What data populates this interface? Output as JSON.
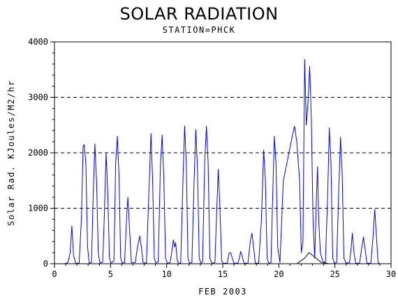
{
  "chart_data": {
    "type": "line",
    "title": "SOLAR RADIATION",
    "subtitle": "STATION=PHCK",
    "xlabel": "FEB 2003",
    "ylabel": "Solar Rad. KJoules/M2/hr",
    "xlim": [
      0,
      30
    ],
    "ylim": [
      0,
      4000
    ],
    "x_ticks": [
      0,
      5,
      10,
      15,
      20,
      25,
      30
    ],
    "y_ticks": [
      0,
      1000,
      2000,
      3000,
      4000
    ],
    "y_tick_labels": [
      "0",
      "1000",
      "2000",
      "3000",
      "4000"
    ],
    "grid": "dashed horizontal",
    "series": [
      {
        "color": "#0000ff",
        "points": [
          [
            0.9,
            0
          ],
          [
            1.2,
            20
          ],
          [
            1.4,
            200
          ],
          [
            1.55,
            680
          ],
          [
            1.7,
            150
          ],
          [
            1.9,
            10
          ],
          [
            2.2,
            10
          ],
          [
            2.4,
            800
          ],
          [
            2.55,
            2100
          ],
          [
            2.65,
            2150
          ],
          [
            2.8,
            1800
          ],
          [
            2.95,
            300
          ],
          [
            3.1,
            10
          ],
          [
            3.3,
            20
          ],
          [
            3.45,
            1200
          ],
          [
            3.6,
            2160
          ],
          [
            3.75,
            1500
          ],
          [
            3.9,
            200
          ],
          [
            4.05,
            10
          ],
          [
            4.3,
            30
          ],
          [
            4.45,
            900
          ],
          [
            4.6,
            2000
          ],
          [
            4.75,
            1300
          ],
          [
            4.9,
            100
          ],
          [
            5.05,
            10
          ],
          [
            5.3,
            50
          ],
          [
            5.45,
            1800
          ],
          [
            5.6,
            2300
          ],
          [
            5.75,
            1600
          ],
          [
            5.9,
            100
          ],
          [
            6.05,
            10
          ],
          [
            6.25,
            20
          ],
          [
            6.45,
            900
          ],
          [
            6.55,
            1200
          ],
          [
            6.7,
            600
          ],
          [
            6.85,
            20
          ],
          [
            7.2,
            20
          ],
          [
            7.4,
            300
          ],
          [
            7.6,
            500
          ],
          [
            7.75,
            300
          ],
          [
            7.9,
            20
          ],
          [
            8.2,
            10
          ],
          [
            8.4,
            1200
          ],
          [
            8.6,
            2350
          ],
          [
            8.75,
            1500
          ],
          [
            8.9,
            100
          ],
          [
            9.05,
            10
          ],
          [
            9.25,
            30
          ],
          [
            9.45,
            1800
          ],
          [
            9.6,
            2320
          ],
          [
            9.75,
            1500
          ],
          [
            9.9,
            100
          ],
          [
            10.05,
            10
          ],
          [
            10.3,
            20
          ],
          [
            10.45,
            200
          ],
          [
            10.6,
            430
          ],
          [
            10.7,
            300
          ],
          [
            10.8,
            380
          ],
          [
            10.95,
            50
          ],
          [
            11.1,
            10
          ],
          [
            11.25,
            10
          ],
          [
            11.45,
            1500
          ],
          [
            11.6,
            2480
          ],
          [
            11.75,
            1800
          ],
          [
            11.9,
            100
          ],
          [
            12.05,
            10
          ],
          [
            12.25,
            20
          ],
          [
            12.45,
            1500
          ],
          [
            12.6,
            2420
          ],
          [
            12.75,
            1700
          ],
          [
            12.9,
            100
          ],
          [
            13.05,
            10
          ],
          [
            13.2,
            30
          ],
          [
            13.4,
            1900
          ],
          [
            13.55,
            2480
          ],
          [
            13.7,
            1800
          ],
          [
            13.85,
            100
          ],
          [
            14.05,
            10
          ],
          [
            14.3,
            20
          ],
          [
            14.45,
            900
          ],
          [
            14.6,
            1700
          ],
          [
            14.75,
            1000
          ],
          [
            14.9,
            50
          ],
          [
            15.05,
            10
          ],
          [
            15.4,
            10
          ],
          [
            15.55,
            180
          ],
          [
            15.7,
            200
          ],
          [
            15.85,
            100
          ],
          [
            16.0,
            10
          ],
          [
            16.35,
            10
          ],
          [
            16.5,
            120
          ],
          [
            16.6,
            220
          ],
          [
            16.75,
            120
          ],
          [
            16.9,
            10
          ],
          [
            17.25,
            10
          ],
          [
            17.45,
            400
          ],
          [
            17.6,
            550
          ],
          [
            17.75,
            300
          ],
          [
            17.9,
            10
          ],
          [
            18.2,
            10
          ],
          [
            18.45,
            800
          ],
          [
            18.65,
            2050
          ],
          [
            18.8,
            1500
          ],
          [
            18.95,
            100
          ],
          [
            19.1,
            10
          ],
          [
            19.3,
            20
          ],
          [
            19.45,
            1200
          ],
          [
            19.6,
            2300
          ],
          [
            19.75,
            1800
          ],
          [
            19.9,
            300
          ],
          [
            20.1,
            20
          ],
          [
            20.4,
            1500
          ],
          [
            20.8,
            1900
          ],
          [
            21.2,
            2300
          ],
          [
            21.4,
            2480
          ],
          [
            21.6,
            2200
          ],
          [
            21.85,
            1500
          ],
          [
            22.0,
            200
          ],
          [
            22.15,
            400
          ],
          [
            22.3,
            3680
          ],
          [
            22.45,
            2500
          ],
          [
            22.6,
            2900
          ],
          [
            22.75,
            3560
          ],
          [
            22.9,
            2600
          ],
          [
            23.05,
            800
          ],
          [
            23.2,
            100
          ],
          [
            23.35,
            1200
          ],
          [
            23.45,
            1750
          ],
          [
            23.55,
            800
          ],
          [
            23.7,
            200
          ],
          [
            23.9,
            50
          ],
          [
            24.15,
            20
          ],
          [
            24.35,
            1200
          ],
          [
            24.5,
            2450
          ],
          [
            24.65,
            1800
          ],
          [
            24.8,
            100
          ],
          [
            24.95,
            10
          ],
          [
            25.15,
            20
          ],
          [
            25.35,
            1400
          ],
          [
            25.5,
            2280
          ],
          [
            25.65,
            1600
          ],
          [
            25.8,
            100
          ],
          [
            26.0,
            10
          ],
          [
            26.3,
            20
          ],
          [
            26.45,
            300
          ],
          [
            26.55,
            550
          ],
          [
            26.7,
            200
          ],
          [
            26.85,
            10
          ],
          [
            27.2,
            10
          ],
          [
            27.4,
            300
          ],
          [
            27.55,
            480
          ],
          [
            27.7,
            250
          ],
          [
            27.85,
            10
          ],
          [
            28.2,
            10
          ],
          [
            28.4,
            500
          ],
          [
            28.55,
            980
          ],
          [
            28.7,
            500
          ],
          [
            28.85,
            20
          ],
          [
            29.0,
            0
          ]
        ]
      },
      {
        "color": "#000000",
        "points": [
          [
            0.5,
            0
          ],
          [
            21.6,
            0
          ],
          [
            22.3,
            100
          ],
          [
            22.7,
            200
          ],
          [
            23.2,
            120
          ],
          [
            23.8,
            20
          ],
          [
            24.5,
            0
          ],
          [
            29.0,
            0
          ]
        ]
      }
    ]
  }
}
